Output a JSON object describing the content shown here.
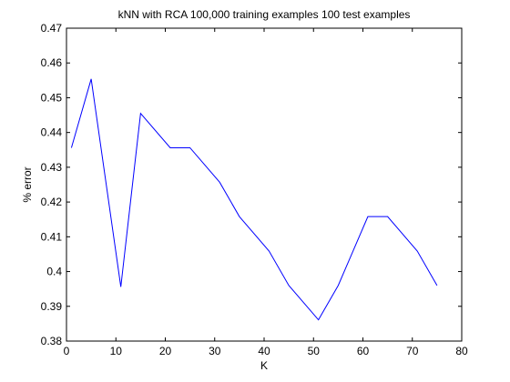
{
  "chart_data": {
    "type": "line",
    "title": "kNN with RCA 100,000 training examples 100 test examples",
    "x_label": "K",
    "y_label": "% error",
    "x": [
      1,
      5,
      11,
      15,
      21,
      25,
      31,
      35,
      41,
      45,
      51,
      55,
      61,
      65,
      71,
      75
    ],
    "series": [
      {
        "color": "#0000ff",
        "values": [
          0.4356,
          0.4554,
          0.3956,
          0.4455,
          0.4356,
          0.4356,
          0.4257,
          0.4158,
          0.4059,
          0.396,
          0.3861,
          0.396,
          0.4158,
          0.4158,
          0.4059,
          0.396
        ]
      }
    ],
    "xlim": [
      0,
      80
    ],
    "xticks": [
      0,
      10,
      20,
      30,
      40,
      50,
      60,
      70,
      80
    ],
    "ylim": [
      0.38,
      0.47
    ],
    "yticks": [
      0.38,
      0.39,
      0.4,
      0.41,
      0.42,
      0.43,
      0.44,
      0.45,
      0.46,
      0.47
    ],
    "grid": false
  }
}
